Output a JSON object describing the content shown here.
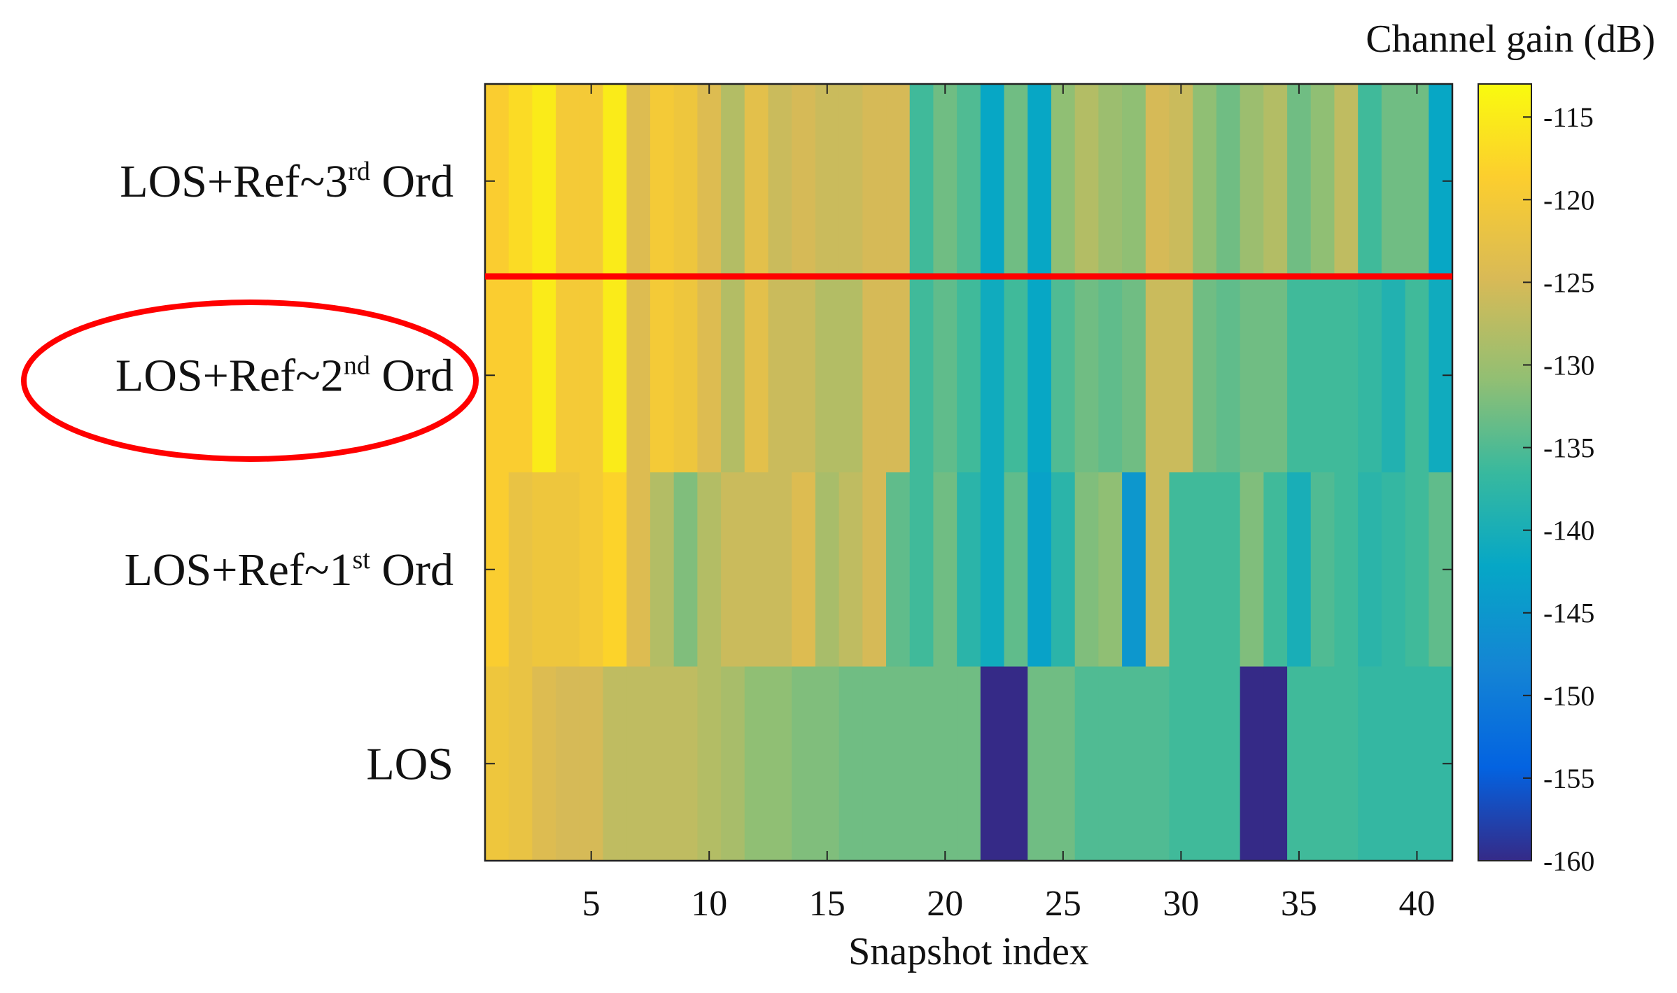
{
  "chart_data": {
    "type": "heatmap",
    "title": "",
    "xlabel": "Snapshot index",
    "ylabel": "",
    "x": [
      1,
      2,
      3,
      4,
      5,
      6,
      7,
      8,
      9,
      10,
      11,
      12,
      13,
      14,
      15,
      16,
      17,
      18,
      19,
      20,
      21,
      22,
      23,
      24,
      25,
      26,
      27,
      28,
      29,
      30,
      31,
      32,
      33,
      34,
      35,
      36,
      37,
      38,
      39,
      40,
      41
    ],
    "x_ticks": [
      5,
      10,
      15,
      20,
      25,
      30,
      35,
      40
    ],
    "rows": [
      {
        "label_main": "LOS+Ref~3",
        "label_sup": "rd",
        "label_tail": " Ord",
        "values": [
          -119,
          -117,
          -115,
          -120,
          -120,
          -115,
          -124,
          -120,
          -121,
          -124,
          -128,
          -123,
          -126,
          -125,
          -126,
          -126,
          -125,
          -125,
          -136,
          -133,
          -135,
          -142,
          -133,
          -142,
          -131,
          -128,
          -130,
          -131,
          -125,
          -126,
          -131,
          -133,
          -130,
          -128,
          -133,
          -131,
          -127,
          -136,
          -133,
          -133,
          -142
        ]
      },
      {
        "label_main": "LOS+Ref~2",
        "label_sup": "nd",
        "label_tail": " Ord",
        "values": [
          -119,
          -119,
          -115,
          -120,
          -120,
          -115,
          -124,
          -120,
          -121,
          -124,
          -128,
          -123,
          -126,
          -126,
          -128,
          -128,
          -125,
          -125,
          -136,
          -134,
          -136,
          -141,
          -136,
          -142,
          -135,
          -133,
          -134,
          -133,
          -126,
          -126,
          -133,
          -134,
          -133,
          -133,
          -136,
          -136,
          -136,
          -137,
          -139,
          -136,
          -141
        ]
      },
      {
        "label_main": "LOS+Ref~1",
        "label_sup": "st",
        "label_tail": " Ord",
        "values": [
          -119,
          -122,
          -121,
          -121,
          -120,
          -118,
          -124,
          -128,
          -132,
          -128,
          -126,
          -126,
          -126,
          -124,
          -129,
          -127,
          -125,
          -134,
          -136,
          -133,
          -138,
          -141,
          -134,
          -143,
          -138,
          -132,
          -131,
          -145,
          -126,
          -136,
          -136,
          -136,
          -132,
          -136,
          -140,
          -135,
          -136,
          -138,
          -137,
          -136,
          -134
        ]
      },
      {
        "label_main": "LOS",
        "label_sup": "",
        "label_tail": "",
        "values": [
          -121,
          -122,
          -124,
          -125,
          -125,
          -127,
          -127,
          -127,
          -127,
          -128,
          -129,
          -131,
          -131,
          -132,
          -132,
          -133,
          -133,
          -133,
          -133,
          -133,
          -133,
          -160,
          -160,
          -133,
          -133,
          -135,
          -135,
          -135,
          -135,
          -136,
          -136,
          -136,
          -160,
          -160,
          -136,
          -136,
          -136,
          -137,
          -137,
          -137,
          -137
        ]
      }
    ],
    "colorbar": {
      "title": "Channel gain (dB)",
      "range": [
        -160,
        -113
      ],
      "ticks": [
        -115,
        -120,
        -125,
        -130,
        -135,
        -140,
        -145,
        -150,
        -155,
        -160
      ],
      "colormap": "parula"
    },
    "annotations": {
      "separator_line": {
        "color": "#ff0000",
        "between_rows": [
          "LOS+Ref~3rd Ord",
          "LOS+Ref~2nd Ord"
        ]
      },
      "highlight_ellipse": {
        "color": "#ff0000",
        "around_label": "LOS+Ref~2nd Ord"
      }
    }
  }
}
